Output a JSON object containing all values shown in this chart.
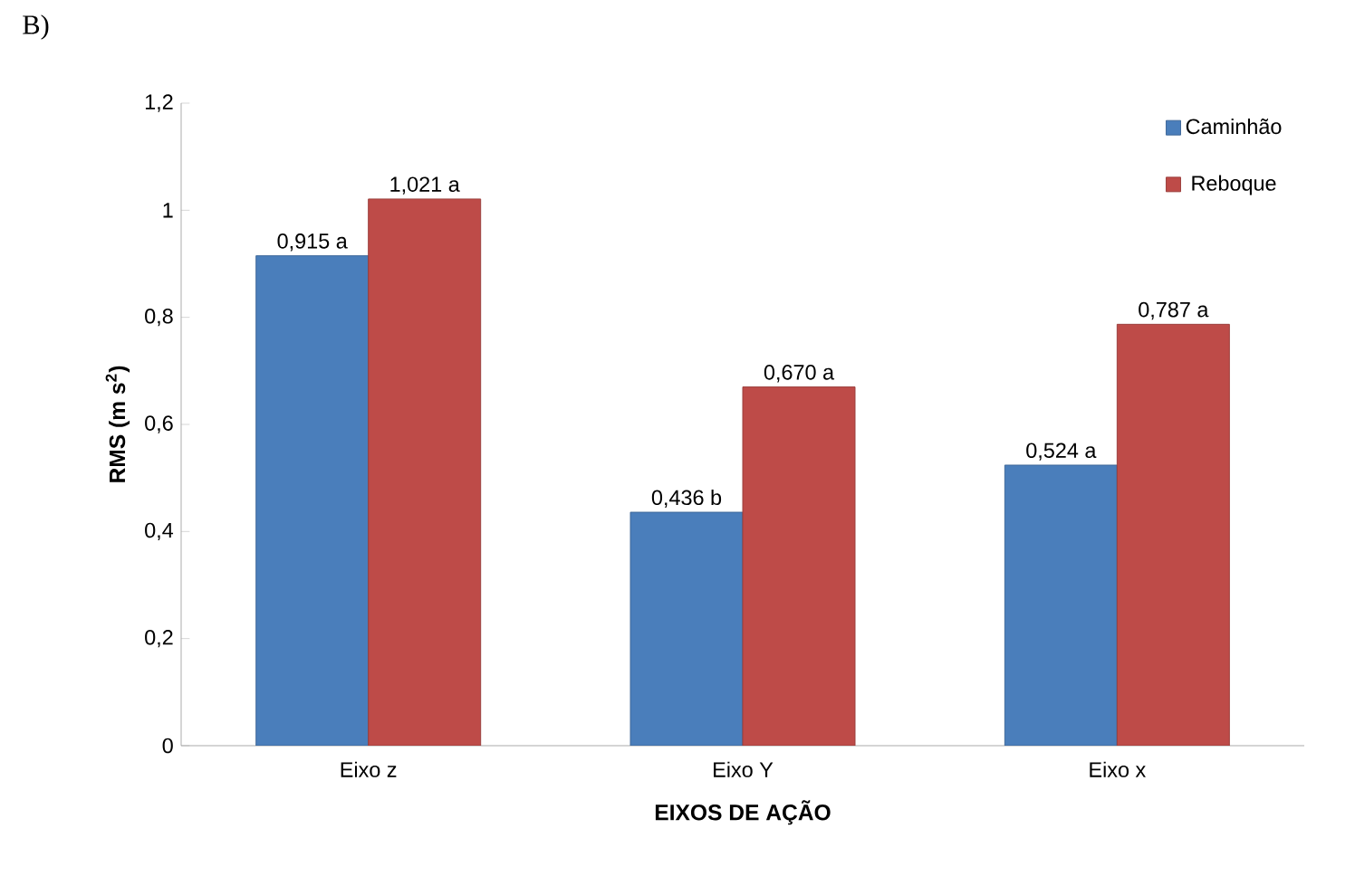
{
  "chart_data": {
    "type": "bar",
    "annotations": [
      "B)"
    ],
    "xlabel": "EIXOS DE AÇÃO",
    "ylabel": "RMS (m s$^{2}$)",
    "categories": [
      "Eixo z",
      "Eixo Y",
      "Eixo x"
    ],
    "series": [
      {
        "name": "Caminhão",
        "color": "#4a7ebb",
        "values": [
          0.915,
          0.436,
          0.524
        ],
        "value_labels": [
          "0,915 a",
          "0,436 b",
          "0,524 a"
        ]
      },
      {
        "name": "Reboque",
        "color": "#be4b48",
        "values": [
          1.021,
          0.67,
          0.787
        ],
        "value_labels": [
          "1,021 a",
          "0,670 a",
          "0,787 a"
        ]
      }
    ],
    "ylim": [
      0,
      1.2
    ],
    "yticks": [
      0,
      {
        "value": 0.2,
        "label": "0,2"
      },
      {
        "value": 0.4,
        "label": "0,4"
      },
      {
        "value": 0.6,
        "label": "0,6"
      },
      {
        "value": 0.8,
        "label": "0,8"
      },
      1,
      {
        "value": 1.2,
        "label": "1,2"
      }
    ],
    "legend": "top right"
  }
}
